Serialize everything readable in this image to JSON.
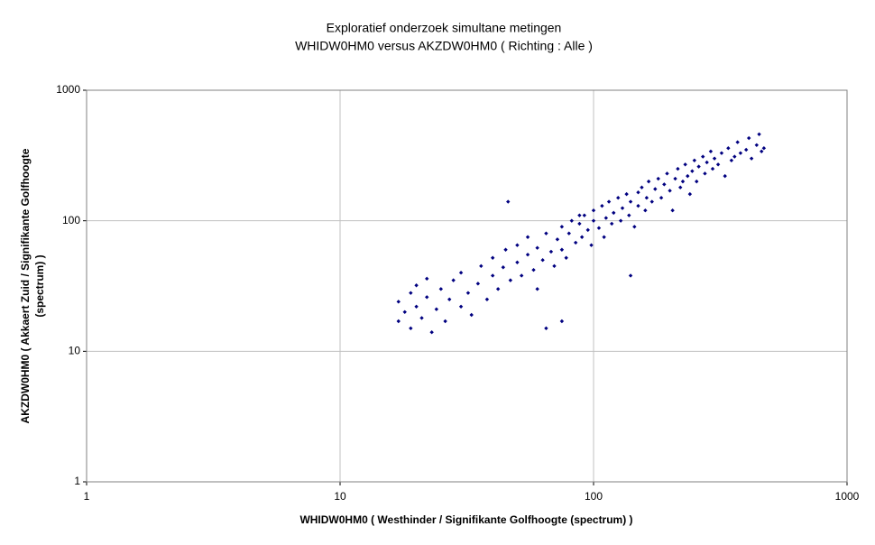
{
  "chart_data": {
    "type": "scatter",
    "title": [
      "Exploratief onderzoek simultane metingen",
      "WHIDW0HM0 versus AKZDW0HM0 ( Richting : Alle )"
    ],
    "xlabel": "WHIDW0HM0 ( Westhinder / Signifikante Golfhoogte (spectrum) )",
    "ylabel": [
      "AKZDW0HM0 ( Akkaert Zuid / Signifikante Golfhoogte",
      "(spectrum) )"
    ],
    "xscale": "log",
    "yscale": "log",
    "grid": true,
    "xlim": [
      1,
      1000
    ],
    "ylim": [
      1,
      1000
    ],
    "xticks": [
      1,
      10,
      100,
      1000
    ],
    "yticks": [
      1,
      10,
      100,
      1000
    ],
    "series": [
      {
        "color": "#000080",
        "x": [
          17,
          17,
          18,
          19,
          19,
          20,
          20,
          21,
          22,
          22,
          23,
          24,
          25,
          26,
          27,
          28,
          30,
          30,
          32,
          33,
          35,
          36,
          38,
          40,
          40,
          42,
          44,
          45,
          47,
          50,
          50,
          52,
          55,
          55,
          58,
          60,
          60,
          63,
          65,
          68,
          70,
          72,
          75,
          75,
          78,
          80,
          82,
          85,
          88,
          90,
          92,
          95,
          98,
          100,
          100,
          105,
          108,
          110,
          112,
          115,
          118,
          120,
          125,
          128,
          130,
          135,
          138,
          140,
          145,
          150,
          150,
          155,
          160,
          162,
          165,
          170,
          175,
          180,
          185,
          190,
          195,
          200,
          205,
          210,
          215,
          220,
          225,
          230,
          235,
          240,
          245,
          250,
          255,
          260,
          270,
          275,
          280,
          290,
          295,
          300,
          310,
          320,
          330,
          340,
          350,
          360,
          370,
          380,
          400,
          410,
          420,
          440,
          450,
          460,
          470,
          46,
          75,
          65,
          140,
          88
        ],
        "y": [
          17,
          24,
          20,
          15,
          28,
          22,
          32,
          18,
          26,
          36,
          14,
          21,
          30,
          17,
          25,
          35,
          22,
          40,
          28,
          19,
          33,
          45,
          25,
          38,
          52,
          30,
          44,
          60,
          35,
          48,
          65,
          38,
          55,
          75,
          42,
          62,
          30,
          50,
          80,
          58,
          45,
          72,
          90,
          60,
          52,
          80,
          100,
          68,
          95,
          75,
          110,
          85,
          65,
          100,
          120,
          88,
          130,
          75,
          105,
          140,
          95,
          115,
          150,
          100,
          125,
          160,
          110,
          140,
          90,
          165,
          130,
          180,
          120,
          150,
          200,
          140,
          175,
          210,
          150,
          190,
          230,
          170,
          120,
          210,
          250,
          180,
          200,
          270,
          220,
          160,
          240,
          290,
          200,
          260,
          310,
          230,
          280,
          340,
          250,
          300,
          270,
          330,
          220,
          360,
          290,
          310,
          400,
          330,
          350,
          430,
          300,
          380,
          460,
          340,
          360,
          140,
          17,
          15,
          38,
          110
        ]
      }
    ]
  }
}
